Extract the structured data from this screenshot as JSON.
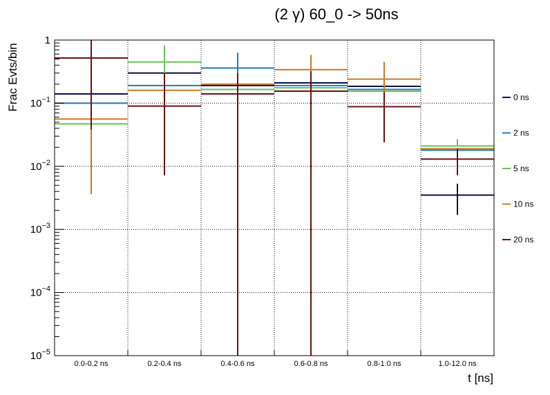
{
  "chart_data": {
    "type": "histogram",
    "title": "(2 γ) 60_0 -> 50ns",
    "xlabel": "t [ns]",
    "ylabel": "Frac Evts/bin",
    "y_scale": "log",
    "ylim": [
      1e-05,
      1
    ],
    "y_ticks": [
      {
        "value": 1,
        "label": "1",
        "base": "",
        "exp": ""
      },
      {
        "value": 0.1,
        "label": "",
        "base": "10",
        "exp": "−1"
      },
      {
        "value": 0.01,
        "label": "",
        "base": "10",
        "exp": "−2"
      },
      {
        "value": 0.001,
        "label": "",
        "base": "10",
        "exp": "−3"
      },
      {
        "value": 0.0001,
        "label": "",
        "base": "10",
        "exp": "−4"
      },
      {
        "value": 1e-05,
        "label": "",
        "base": "10",
        "exp": "−5"
      }
    ],
    "categories": [
      "0.0-0.2 ns",
      "0.2-0.4 ns",
      "0.4-0.6 ns",
      "0.6-0.8 ns",
      "0.8-1.0 ns",
      "1.0-12.0 ns"
    ],
    "grid": true,
    "legend_position": "right",
    "series": [
      {
        "name": "0 ns",
        "color": "#0b0b4a",
        "values": [
          0.14,
          0.3,
          0.19,
          0.21,
          0.185,
          0.0035
        ],
        "err_low": [
          null,
          null,
          null,
          null,
          null,
          0.0017
        ],
        "err_high": [
          null,
          null,
          null,
          null,
          null,
          0.0053
        ]
      },
      {
        "name": "2 ns",
        "color": "#1f78b4",
        "values": [
          0.1,
          0.19,
          0.36,
          0.19,
          0.165,
          0.018
        ],
        "err_low": [
          null,
          null,
          0.15,
          null,
          null,
          null
        ],
        "err_high": [
          null,
          null,
          0.63,
          null,
          null,
          null
        ]
      },
      {
        "name": "5 ns",
        "color": "#66c25a",
        "values": [
          0.047,
          0.45,
          0.165,
          0.175,
          0.155,
          0.021
        ],
        "err_low": [
          null,
          0.18,
          null,
          null,
          null,
          null
        ],
        "err_high": [
          null,
          0.82,
          null,
          null,
          null,
          0.027
        ]
      },
      {
        "name": "10 ns",
        "color": "#cc7a1f",
        "values": [
          0.056,
          0.16,
          0.2,
          0.34,
          0.24,
          0.019
        ],
        "err_low": [
          0.0036,
          null,
          null,
          1e-05,
          0.045,
          null
        ],
        "err_high": [
          0.2,
          null,
          null,
          0.58,
          0.45,
          null
        ]
      },
      {
        "name": "20 ns",
        "color": "#6b0f0f",
        "values": [
          0.52,
          0.09,
          0.14,
          0.155,
          0.088,
          0.013
        ],
        "err_low": [
          0.038,
          0.0072,
          1e-05,
          1e-05,
          0.024,
          0.0072
        ],
        "err_high": [
          1.0,
          0.3,
          0.3,
          0.32,
          0.15,
          0.019
        ]
      }
    ]
  }
}
